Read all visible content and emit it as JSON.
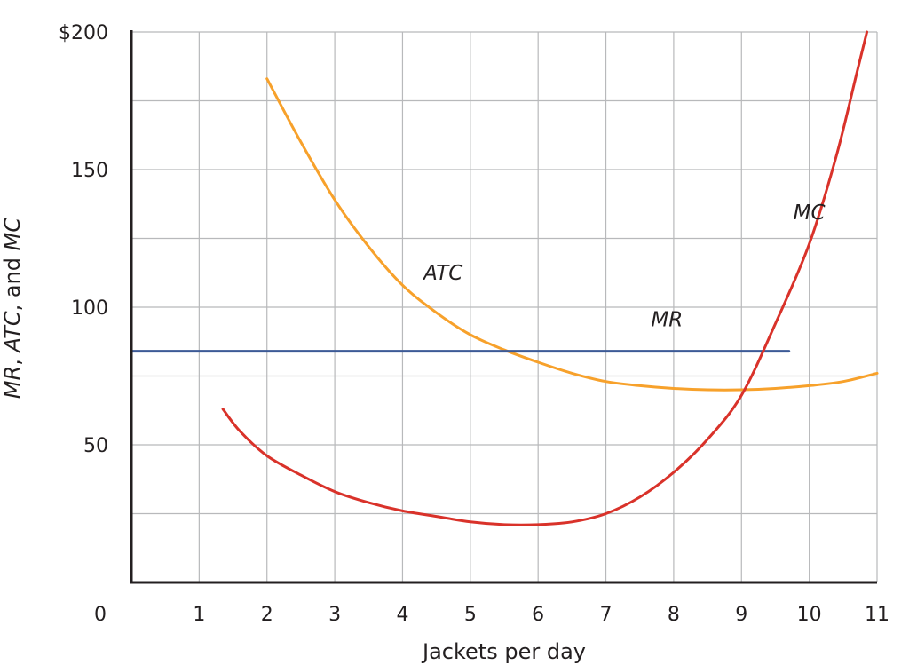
{
  "chart_data": {
    "type": "line",
    "title": "",
    "xlabel": "Jackets per day",
    "ylabel_parts": [
      {
        "text": "MR",
        "italic": true
      },
      {
        "text": ", ",
        "italic": false
      },
      {
        "text": "ATC",
        "italic": true
      },
      {
        "text": ", and ",
        "italic": false
      },
      {
        "text": "MC",
        "italic": true
      }
    ],
    "xlim": [
      0,
      11
    ],
    "ylim": [
      0,
      200
    ],
    "grid": true,
    "legend": "none",
    "x_ticks": [
      1,
      2,
      3,
      4,
      5,
      6,
      7,
      8,
      9,
      10,
      11
    ],
    "x_tick_labels": [
      "1",
      "2",
      "3",
      "4",
      "5",
      "6",
      "7",
      "8",
      "9",
      "10",
      "11"
    ],
    "origin_label": "0",
    "y_ticks": [
      50,
      100,
      150,
      200
    ],
    "y_tick_labels": [
      "50",
      "100",
      "150",
      "$200"
    ],
    "series": [
      {
        "label": "ATC",
        "color": "#f7a12b",
        "points": [
          [
            2,
            183
          ],
          [
            2.5,
            160
          ],
          [
            3,
            139
          ],
          [
            3.5,
            122
          ],
          [
            4,
            108
          ],
          [
            4.5,
            98
          ],
          [
            5,
            90
          ],
          [
            5.5,
            84.5
          ],
          [
            6,
            80
          ],
          [
            6.5,
            76
          ],
          [
            7,
            73
          ],
          [
            7.5,
            71.5
          ],
          [
            8,
            70.5
          ],
          [
            8.5,
            70
          ],
          [
            9,
            70
          ],
          [
            9.5,
            70.5
          ],
          [
            10,
            71.5
          ],
          [
            10.5,
            73
          ],
          [
            11,
            76
          ]
        ]
      },
      {
        "label": "MR",
        "color": "#3c5a96",
        "points": [
          [
            0,
            84
          ],
          [
            9.7,
            84
          ]
        ]
      },
      {
        "label": "MC",
        "color": "#d9322a",
        "points": [
          [
            1.35,
            63
          ],
          [
            1.6,
            55
          ],
          [
            2,
            46
          ],
          [
            2.5,
            39
          ],
          [
            3,
            33
          ],
          [
            3.5,
            29
          ],
          [
            4,
            26
          ],
          [
            4.5,
            24
          ],
          [
            5,
            22
          ],
          [
            5.5,
            21
          ],
          [
            6,
            21
          ],
          [
            6.5,
            22
          ],
          [
            7,
            25
          ],
          [
            7.5,
            31
          ],
          [
            8,
            40
          ],
          [
            8.5,
            52
          ],
          [
            9,
            68
          ],
          [
            9.5,
            94
          ],
          [
            10,
            123
          ],
          [
            10.4,
            155
          ],
          [
            10.7,
            185
          ],
          [
            10.85,
            200
          ]
        ]
      }
    ],
    "curve_labels": [
      {
        "text": "ATC",
        "x": 4.6,
        "y": 110
      },
      {
        "text": "MR",
        "x": 7.9,
        "y": 93
      },
      {
        "text": "MC",
        "x": 10.0,
        "y": 132
      }
    ]
  }
}
